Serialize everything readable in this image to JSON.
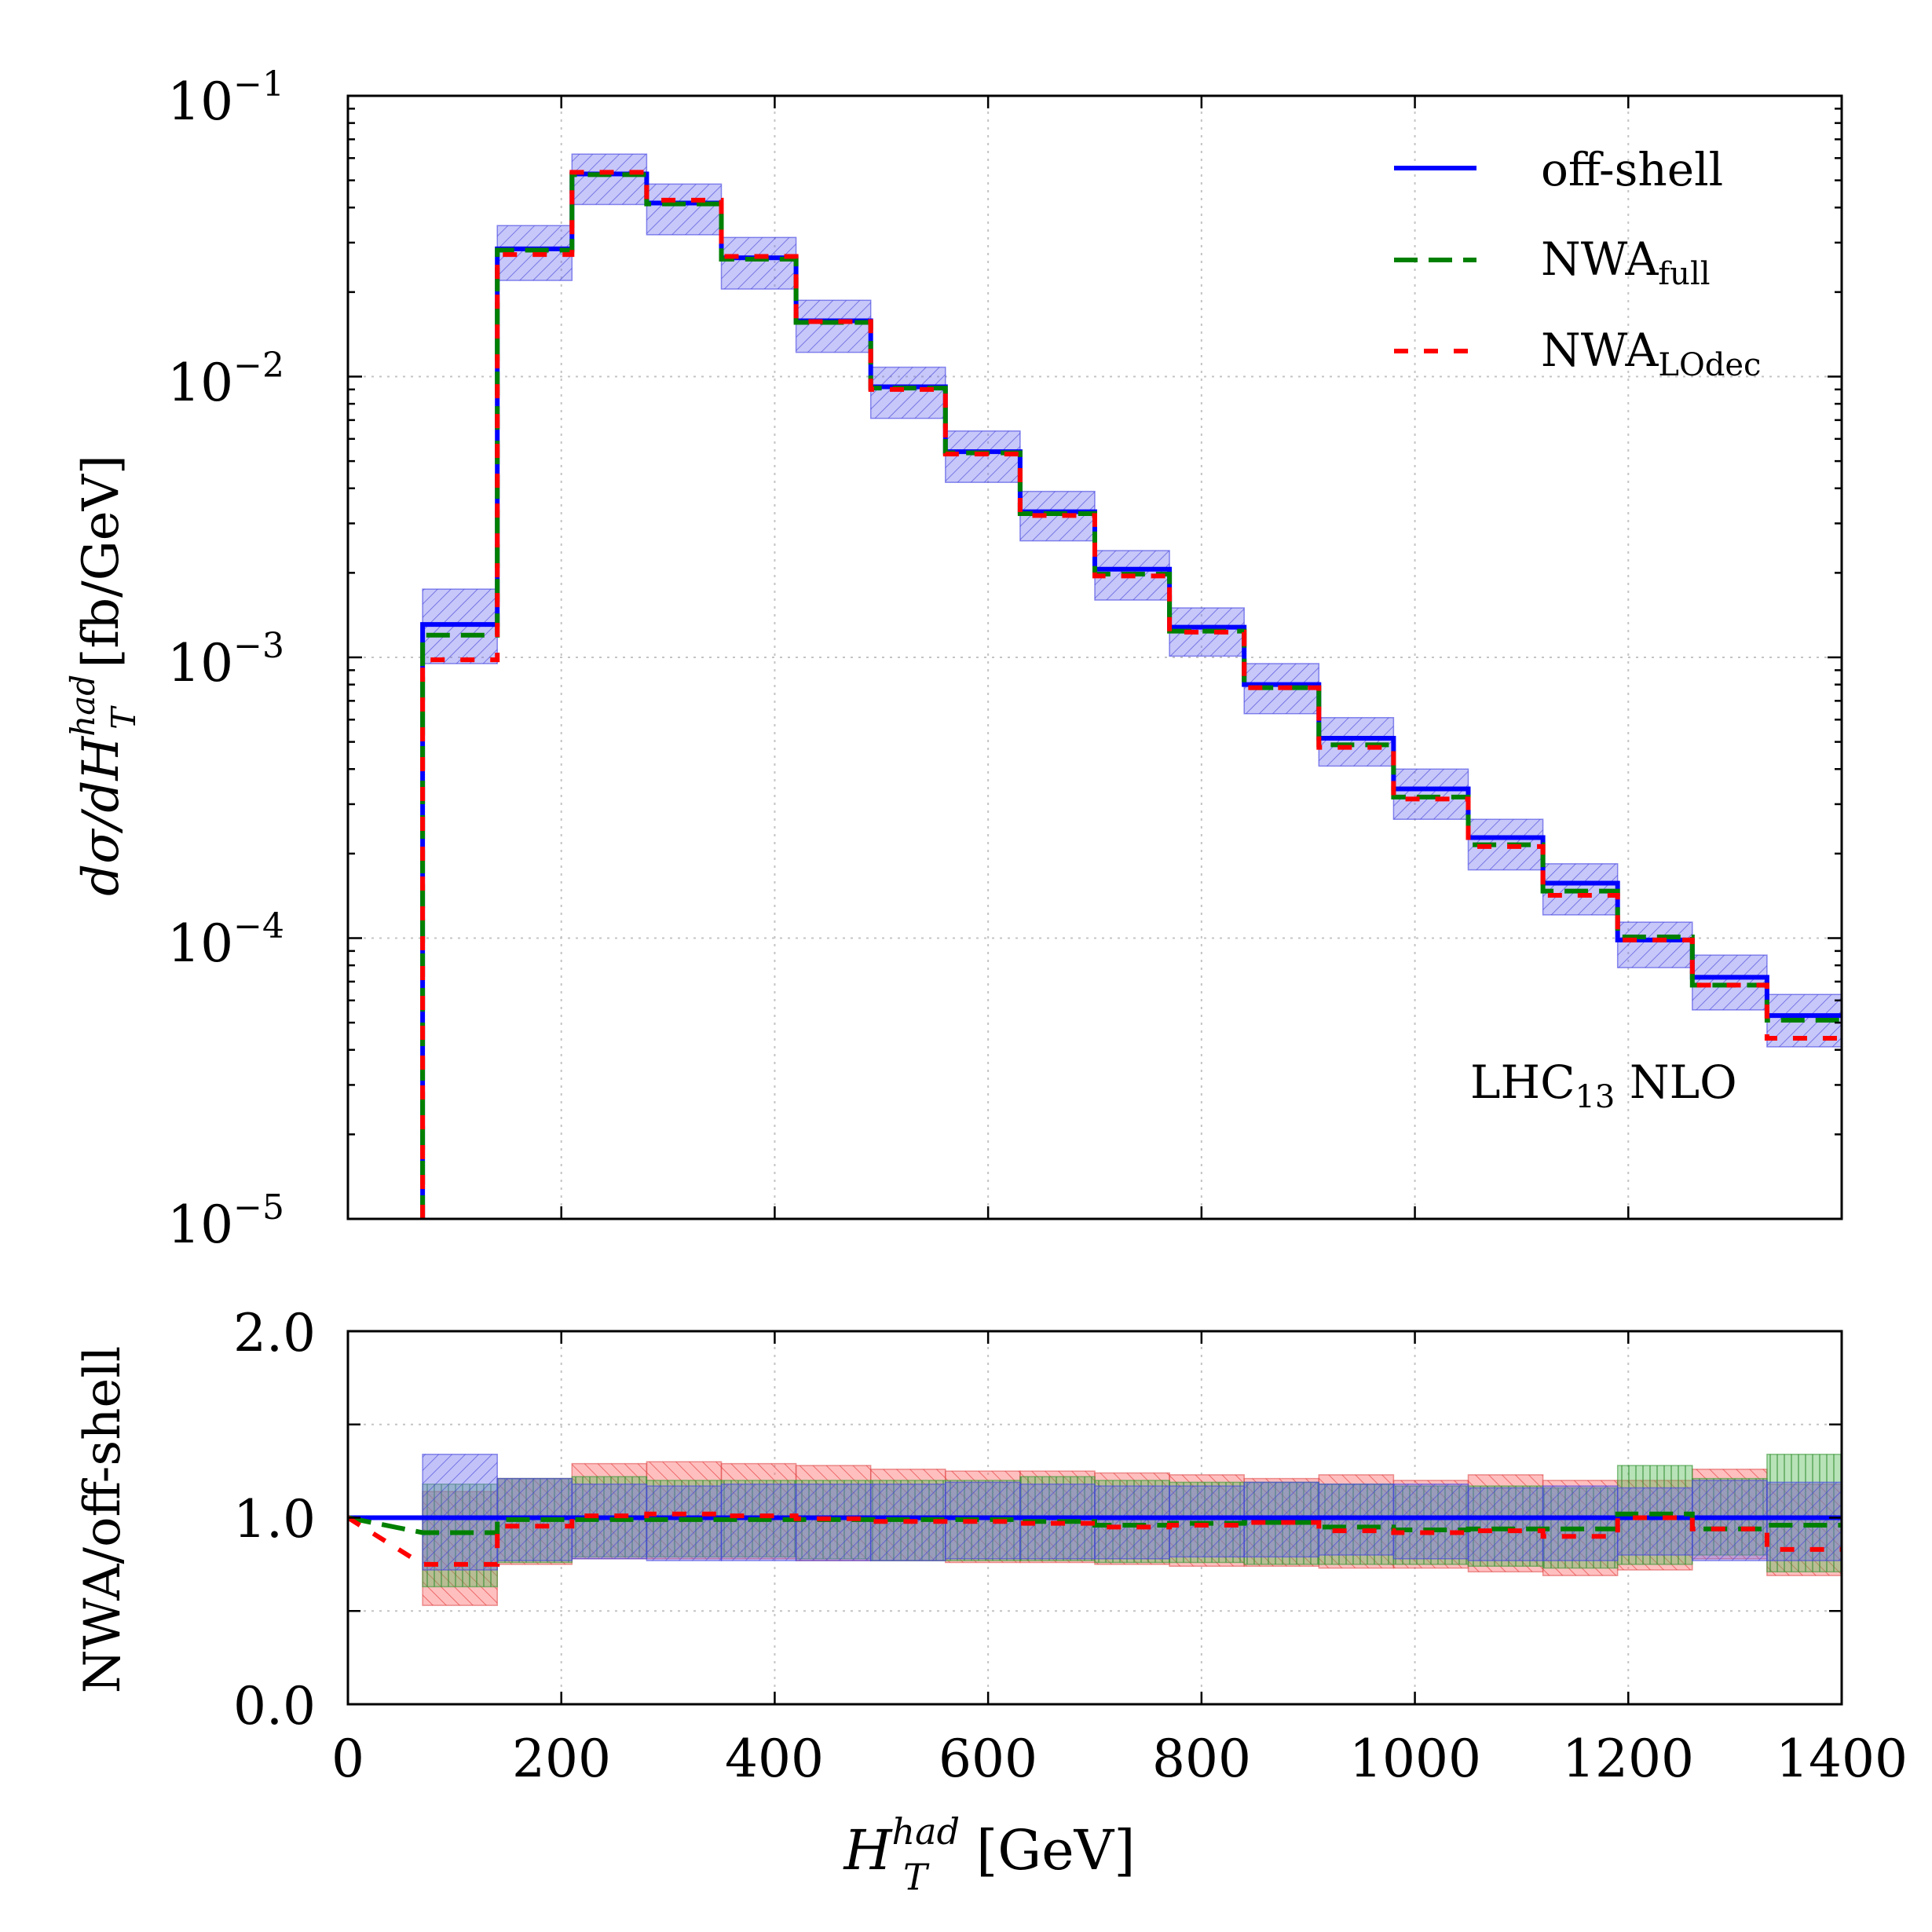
{
  "chart_data": [
    {
      "panel": "main",
      "type": "step",
      "y_scale": "log",
      "ylim": [
        1e-05,
        0.1
      ],
      "xlim": [
        0,
        1400
      ],
      "ylabel": {
        "main": "dσ/dH",
        "sup": "had",
        "sub": "T",
        "unit": " [fb/GeV]"
      },
      "y_ticks": [
        {
          "value": 0.1,
          "base": "10",
          "exp": "−1"
        },
        {
          "value": 0.01,
          "base": "10",
          "exp": "−2"
        },
        {
          "value": 0.001,
          "base": "10",
          "exp": "−3"
        },
        {
          "value": 0.0001,
          "base": "10",
          "exp": "−4"
        },
        {
          "value": 1e-05,
          "base": "10",
          "exp": "−5"
        }
      ],
      "bin_edges": [
        70,
        140,
        210,
        280,
        350,
        420,
        490,
        560,
        630,
        700,
        770,
        840,
        910,
        980,
        1050,
        1120,
        1190,
        1260,
        1330,
        1400
      ],
      "band": {
        "name": "off-shell scale uncertainty",
        "color": "#6d6df0",
        "low": [
          0.00095,
          0.022,
          0.041,
          0.032,
          0.0205,
          0.0122,
          0.0071,
          0.0042,
          0.0026,
          0.0016,
          0.00101,
          0.00063,
          0.00041,
          0.000265,
          0.000175,
          0.000121,
          7.85e-05,
          5.55e-05,
          4.1e-05
        ],
        "high": [
          0.00175,
          0.0345,
          0.062,
          0.0485,
          0.0313,
          0.0187,
          0.0108,
          0.0064,
          0.0039,
          0.0024,
          0.0015,
          0.00095,
          0.00061,
          0.0004,
          0.000265,
          0.000184,
          0.000114,
          8.7e-05,
          6.3e-05
        ]
      },
      "series": [
        {
          "name": "off-shell",
          "color": "#0000ff",
          "dash": "solid",
          "values": [
            0.00131,
            0.0285,
            0.0527,
            0.0415,
            0.0265,
            0.0158,
            0.0092,
            0.0054,
            0.0033,
            0.00206,
            0.00128,
            0.0008,
            0.000515,
            0.00034,
            0.000228,
            0.000157,
            9.85e-05,
            7.25e-05,
            5.3e-05
          ]
        },
        {
          "name": "NWA_full",
          "color": "#008000",
          "dash": "long",
          "values": [
            0.0012,
            0.0282,
            0.0524,
            0.0412,
            0.0262,
            0.0156,
            0.0091,
            0.00535,
            0.00325,
            0.00198,
            0.00124,
            0.00078,
            0.000488,
            0.000318,
            0.000215,
            0.000147,
            0.000101,
            6.8e-05,
            5.1e-05
          ]
        },
        {
          "name": "NWA_LOdec",
          "color": "#ff0000",
          "dash": "short",
          "values": [
            0.00098,
            0.0272,
            0.0534,
            0.0425,
            0.0268,
            0.0157,
            0.009,
            0.0053,
            0.0032,
            0.00195,
            0.00123,
            0.00078,
            0.000478,
            0.000313,
            0.000212,
            0.000142,
            9.85e-05,
            6.8e-05,
            4.4e-05
          ]
        }
      ],
      "legend": [
        {
          "series": "off-shell",
          "text": "off-shell",
          "sub": ""
        },
        {
          "series": "NWA_full",
          "text": "NWA",
          "sub": "full"
        },
        {
          "series": "NWA_LOdec",
          "text": "NWA",
          "sub": "LOdec"
        }
      ],
      "legend_position": "top-right",
      "annotation": {
        "text": "LHC",
        "sub": "13",
        "tail": " NLO"
      },
      "grid": true
    },
    {
      "panel": "ratio",
      "type": "step",
      "ylim": [
        0.0,
        2.0
      ],
      "xlim": [
        0,
        1400
      ],
      "ylabel": "NWA/off-shell",
      "y_ticks": [
        "0.0",
        "1.0",
        "2.0"
      ],
      "y_minor_ticks": [
        0.5,
        1.5
      ],
      "x_ticks": [
        "0",
        "200",
        "400",
        "600",
        "800",
        "1000",
        "1200",
        "1400"
      ],
      "xlabel": {
        "main": "H",
        "sup": "had",
        "sub": "T",
        "unit": " [GeV]"
      },
      "bin_edges": [
        70,
        140,
        210,
        280,
        350,
        420,
        490,
        560,
        630,
        700,
        770,
        840,
        910,
        980,
        1050,
        1120,
        1190,
        1260,
        1330,
        1400
      ],
      "bands": [
        {
          "name": "NWA_LOdec",
          "color": "#ff6666",
          "low": [
            0.53,
            0.75,
            0.78,
            0.78,
            0.78,
            0.77,
            0.77,
            0.76,
            0.76,
            0.75,
            0.74,
            0.74,
            0.73,
            0.73,
            0.71,
            0.69,
            0.72,
            0.78,
            0.69
          ],
          "high": [
            1.14,
            1.21,
            1.29,
            1.3,
            1.29,
            1.28,
            1.26,
            1.25,
            1.25,
            1.24,
            1.23,
            1.21,
            1.23,
            1.2,
            1.23,
            1.2,
            1.2,
            1.26,
            1.18
          ]
        },
        {
          "name": "NWA_full",
          "color": "#55bb55",
          "low": [
            0.63,
            0.76,
            0.79,
            0.79,
            0.79,
            0.78,
            0.77,
            0.77,
            0.77,
            0.76,
            0.76,
            0.75,
            0.75,
            0.75,
            0.74,
            0.73,
            0.75,
            0.8,
            0.71
          ],
          "high": [
            1.18,
            1.21,
            1.22,
            1.2,
            1.2,
            1.2,
            1.2,
            1.2,
            1.22,
            1.2,
            1.19,
            1.19,
            1.18,
            1.17,
            1.17,
            1.16,
            1.28,
            1.21,
            1.34
          ]
        },
        {
          "name": "off-shell",
          "color": "#6d6df0",
          "low": [
            0.72,
            0.77,
            0.78,
            0.77,
            0.77,
            0.77,
            0.77,
            0.78,
            0.78,
            0.78,
            0.79,
            0.79,
            0.8,
            0.78,
            0.77,
            0.77,
            0.8,
            0.77,
            0.77
          ],
          "high": [
            1.34,
            1.21,
            1.18,
            1.17,
            1.18,
            1.18,
            1.18,
            1.19,
            1.18,
            1.17,
            1.17,
            1.19,
            1.18,
            1.18,
            1.16,
            1.17,
            1.16,
            1.2,
            1.19
          ]
        }
      ],
      "series": [
        {
          "name": "off-shell",
          "color": "#0000ff",
          "dash": "solid",
          "values": [
            1.0,
            1.0,
            1.0,
            1.0,
            1.0,
            1.0,
            1.0,
            1.0,
            1.0,
            1.0,
            1.0,
            1.0,
            1.0,
            1.0,
            1.0,
            1.0,
            1.0,
            1.0,
            1.0
          ]
        },
        {
          "name": "NWA_full",
          "color": "#008000",
          "dash": "long",
          "values": [
            0.92,
            0.99,
            0.99,
            0.99,
            0.99,
            0.99,
            0.99,
            0.99,
            0.98,
            0.96,
            0.97,
            0.975,
            0.95,
            0.935,
            0.94,
            0.94,
            1.02,
            0.94,
            0.96
          ]
        },
        {
          "name": "NWA_LOdec",
          "color": "#ff0000",
          "dash": "short",
          "values": [
            0.75,
            0.955,
            1.01,
            1.02,
            1.01,
            0.995,
            0.98,
            0.98,
            0.97,
            0.95,
            0.96,
            0.975,
            0.93,
            0.92,
            0.93,
            0.9,
            1.0,
            0.94,
            0.83
          ]
        }
      ],
      "reference_line": 1.0,
      "grid": true
    }
  ]
}
